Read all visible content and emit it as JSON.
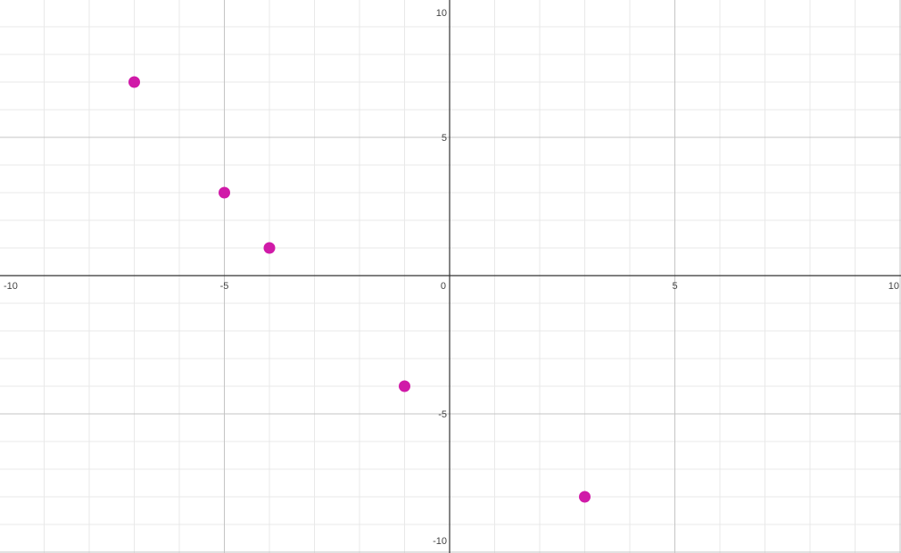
{
  "chart_data": {
    "type": "scatter",
    "title": "",
    "xlabel": "",
    "ylabel": "",
    "xlim": [
      -10,
      10
    ],
    "ylim": [
      -10,
      10
    ],
    "grid": true,
    "minor_grid_step": 1,
    "major_grid_step": 5,
    "x_tick_labels": [
      {
        "value": -10,
        "label": "-10"
      },
      {
        "value": -5,
        "label": "-5"
      },
      {
        "value": 0,
        "label": "0"
      },
      {
        "value": 5,
        "label": "5"
      },
      {
        "value": 10,
        "label": "10"
      }
    ],
    "y_tick_labels": [
      {
        "value": 10,
        "label": "10"
      },
      {
        "value": 5,
        "label": "5"
      },
      {
        "value": -5,
        "label": "-5"
      },
      {
        "value": -10,
        "label": "-10"
      }
    ],
    "series": [
      {
        "color": "#d01aa8",
        "points": [
          {
            "x": -7,
            "y": 7
          },
          {
            "x": -5,
            "y": 3
          },
          {
            "x": -4,
            "y": 1
          },
          {
            "x": -1,
            "y": -4
          },
          {
            "x": 3,
            "y": -8
          }
        ]
      }
    ]
  }
}
